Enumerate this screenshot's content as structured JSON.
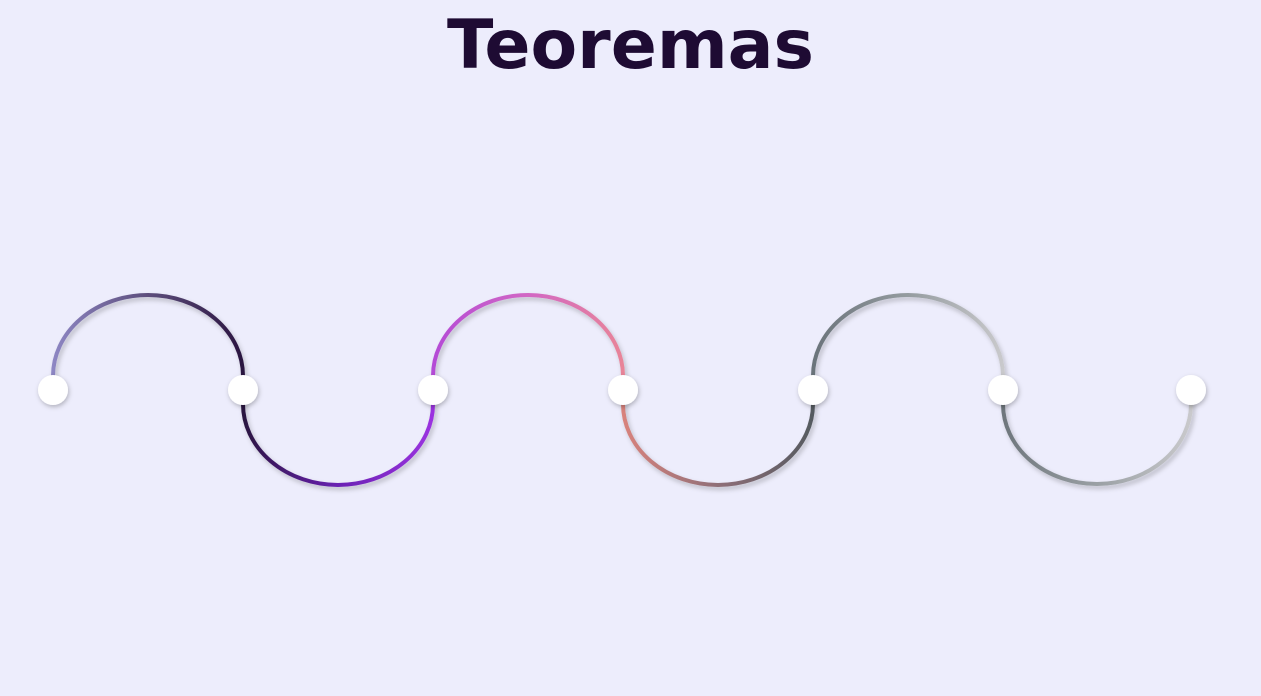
{
  "title": "Teoremas",
  "colors": {
    "background": "#EDEDFC",
    "title": "#1E0B33",
    "node_fill": "#FFFFFF"
  },
  "timeline": {
    "node_count": 7,
    "segments": [
      {
        "direction": "up",
        "gradient": [
          "#8D86C3",
          "#5D4E7C",
          "#2A1440"
        ]
      },
      {
        "direction": "down",
        "gradient": [
          "#2A1440",
          "#6A22B3",
          "#9B33E0"
        ]
      },
      {
        "direction": "up",
        "gradient": [
          "#B44BD6",
          "#D267C4",
          "#E88498"
        ]
      },
      {
        "direction": "down",
        "gradient": [
          "#D8827C",
          "#8F6F78",
          "#555A60"
        ]
      },
      {
        "direction": "up",
        "gradient": [
          "#6A737A",
          "#959CA0",
          "#C9C9CC"
        ]
      },
      {
        "direction": "down",
        "gradient": [
          "#6E767C",
          "#9AA0A4",
          "#C9C9CC"
        ]
      }
    ]
  }
}
